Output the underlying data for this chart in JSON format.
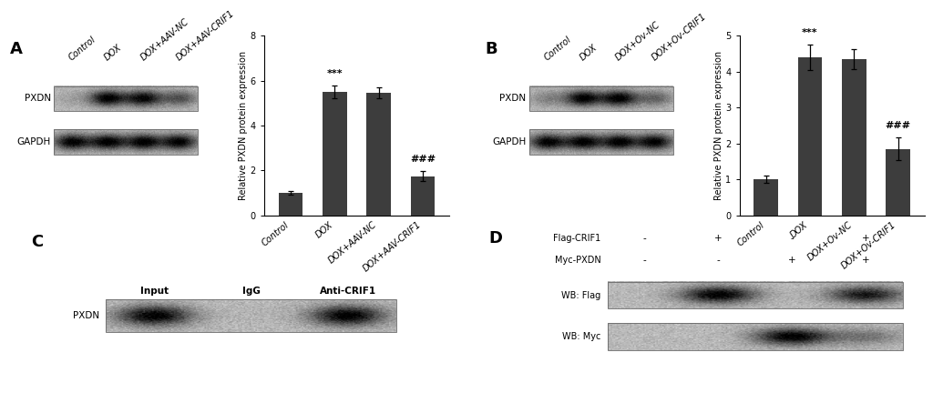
{
  "panel_A": {
    "label": "A",
    "blot_labels": [
      "PXDN",
      "GAPDH"
    ],
    "x_labels": [
      "Control",
      "DOX",
      "DOX+AAV-NC",
      "DOX+AAV-CRIF1"
    ],
    "bar_values": [
      1.0,
      5.5,
      5.45,
      1.75
    ],
    "bar_errors": [
      0.07,
      0.28,
      0.24,
      0.22
    ],
    "ylabel": "Relative PXDN protein expression",
    "ylim": [
      0,
      8
    ],
    "yticks": [
      0,
      2,
      4,
      6,
      8
    ],
    "sig_labels": [
      "",
      "***",
      "",
      "###"
    ],
    "bar_color": "#3d3d3d",
    "pxdn_bands": [
      0.12,
      1.0,
      0.95,
      0.55
    ],
    "gapdh_bands": [
      1.0,
      1.0,
      1.0,
      1.0
    ]
  },
  "panel_B": {
    "label": "B",
    "blot_labels": [
      "PXDN",
      "GAPDH"
    ],
    "x_labels": [
      "Control",
      "DOX",
      "DOX+Ov-NC",
      "DOX+Ov-CRIF1"
    ],
    "bar_values": [
      1.0,
      4.4,
      4.35,
      1.85
    ],
    "bar_errors": [
      0.1,
      0.35,
      0.28,
      0.32
    ],
    "ylabel": "Relative PXDN protein expression",
    "ylim": [
      0,
      5
    ],
    "yticks": [
      0,
      1,
      2,
      3,
      4,
      5
    ],
    "sig_labels": [
      "",
      "***",
      "",
      "###"
    ],
    "bar_color": "#3d3d3d",
    "pxdn_bands": [
      0.28,
      1.0,
      1.0,
      0.45
    ],
    "gapdh_bands": [
      1.0,
      1.0,
      1.0,
      1.0
    ]
  },
  "panel_C": {
    "label": "C",
    "col_labels": [
      "Input",
      "IgG",
      "Anti-CRIF1"
    ],
    "row_label": "PXDN",
    "bands": [
      1.0,
      0.03,
      1.0
    ]
  },
  "panel_D": {
    "label": "D",
    "flag_row": [
      "-",
      "+",
      "-",
      "+"
    ],
    "myc_row": [
      "-",
      "-",
      "+",
      "+"
    ],
    "wb_flag_bands": [
      0.0,
      1.0,
      0.0,
      0.85
    ],
    "wb_myc_bands": [
      0.0,
      0.0,
      1.0,
      0.35
    ]
  },
  "background_color": "#ffffff"
}
